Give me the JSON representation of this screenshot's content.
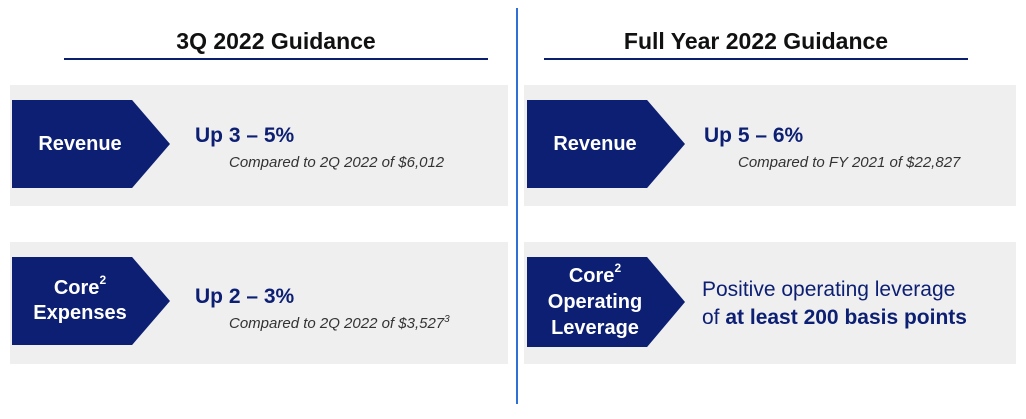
{
  "left": {
    "title": "3Q 2022 Guidance",
    "revenue": {
      "label": "Revenue",
      "headline": "Up 3 – 5%",
      "note": "Compared to 2Q 2022 of $6,012"
    },
    "expenses": {
      "label_line1": "Core",
      "label_sup": "2",
      "label_line2": "Expenses",
      "headline": "Up 2 – 3%",
      "note": "Compared to 2Q 2022 of $3,527",
      "note_sup": "3"
    }
  },
  "right": {
    "title": "Full Year 2022 Guidance",
    "revenue": {
      "label": "Revenue",
      "headline": "Up 5 – 6%",
      "note": "Compared to FY 2021 of $22,827"
    },
    "leverage": {
      "label_line1": "Core",
      "label_sup": "2",
      "label_line2": "Operating",
      "label_line3": "Leverage",
      "text_line1": "Positive operating leverage",
      "text_prefix": "of ",
      "text_bold": "at least 200 basis points"
    }
  },
  "colors": {
    "navy": "#0c1f73",
    "rule": "#0b1f6e",
    "divider": "#2f6fd6",
    "band": "#efefef"
  }
}
